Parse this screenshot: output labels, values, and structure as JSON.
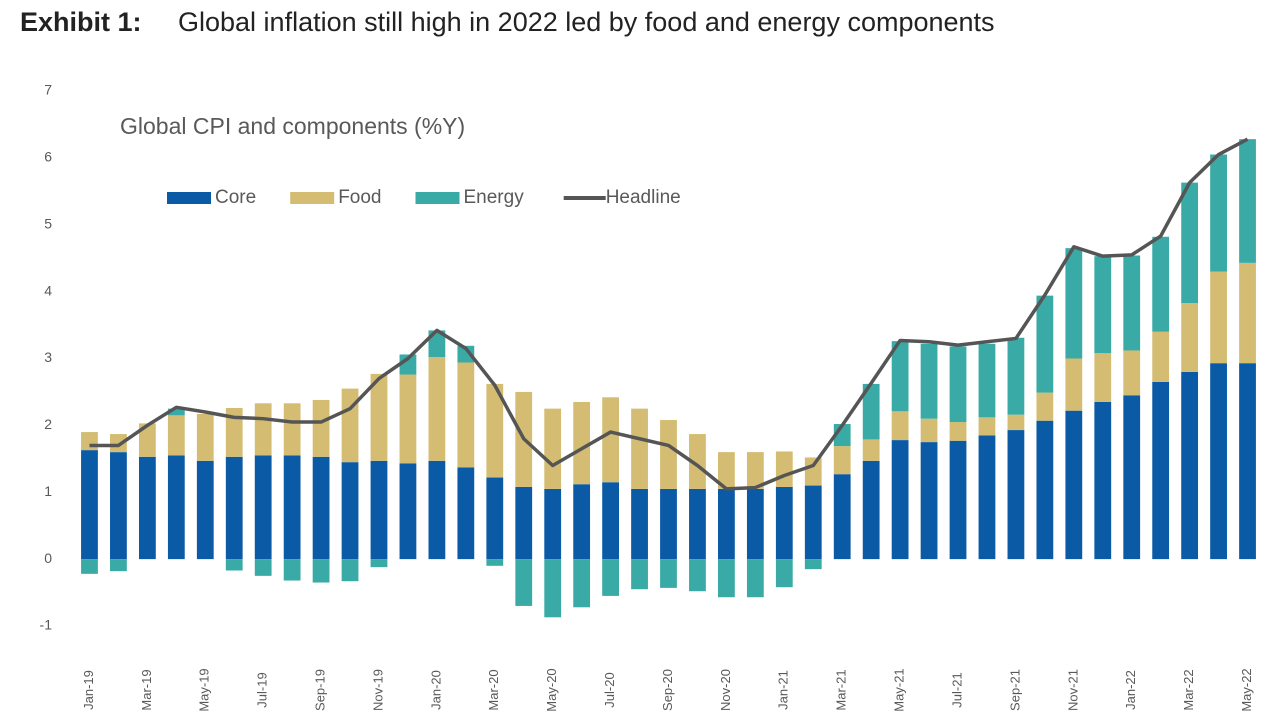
{
  "chart_data": {
    "type": "stacked-bar-line",
    "exhibit": "Exhibit 1:",
    "title": "Global inflation still high in 2022 led by food and energy components",
    "subtitle": "Global CPI and components (%Y)",
    "categories": [
      "Jan-19",
      null,
      "Mar-19",
      null,
      "May-19",
      null,
      "Jul-19",
      null,
      "Sep-19",
      null,
      "Nov-19",
      null,
      "Jan-20",
      null,
      "Mar-20",
      null,
      "May-20",
      null,
      "Jul-20",
      null,
      "Sep-20",
      null,
      "Nov-20",
      null,
      "Jan-21",
      null,
      "Mar-21",
      null,
      "May-21",
      null,
      "Jul-21",
      null,
      "Sep-21",
      null,
      "Nov-21",
      null,
      "Jan-22",
      null,
      "Mar-22",
      null,
      "May-22"
    ],
    "series": [
      {
        "name": "Core",
        "color": "#0a5aa6",
        "kind": "bar",
        "values": [
          1.63,
          1.6,
          1.53,
          1.55,
          1.47,
          1.53,
          1.55,
          1.55,
          1.53,
          1.45,
          1.47,
          1.43,
          1.47,
          1.37,
          1.22,
          1.08,
          1.05,
          1.12,
          1.15,
          1.05,
          1.05,
          1.05,
          1.05,
          1.05,
          1.08,
          1.1,
          1.27,
          1.47,
          1.78,
          1.75,
          1.77,
          1.85,
          1.93,
          2.07,
          2.22,
          2.35,
          2.45,
          2.65,
          2.8,
          2.93,
          2.93
        ]
      },
      {
        "name": "Food",
        "color": "#d4bd72",
        "kind": "bar",
        "values": [
          0.27,
          0.27,
          0.5,
          0.6,
          0.7,
          0.73,
          0.78,
          0.78,
          0.85,
          1.1,
          1.3,
          1.33,
          1.55,
          1.57,
          1.4,
          1.42,
          1.2,
          1.23,
          1.27,
          1.2,
          1.03,
          0.82,
          0.55,
          0.55,
          0.53,
          0.42,
          0.42,
          0.32,
          0.43,
          0.35,
          0.28,
          0.27,
          0.23,
          0.42,
          0.78,
          0.73,
          0.67,
          0.75,
          1.03,
          1.37,
          1.5
        ]
      },
      {
        "name": "Energy",
        "color": "#3aaaa6",
        "kind": "bar",
        "values": [
          -0.22,
          -0.18,
          0,
          0.1,
          0,
          -0.17,
          -0.25,
          -0.32,
          -0.35,
          -0.33,
          -0.12,
          0.3,
          0.4,
          0.25,
          -0.1,
          -0.7,
          -0.87,
          -0.72,
          -0.55,
          -0.45,
          -0.43,
          -0.48,
          -0.57,
          -0.57,
          -0.42,
          -0.15,
          0.33,
          0.83,
          1.05,
          1.12,
          1.13,
          1.1,
          1.15,
          1.45,
          1.65,
          1.45,
          1.42,
          1.42,
          1.8,
          1.75,
          1.85
        ]
      },
      {
        "name": "Headline",
        "color": "#555555",
        "kind": "line",
        "values": [
          1.7,
          1.7,
          2.0,
          2.27,
          2.2,
          2.12,
          2.1,
          2.05,
          2.05,
          2.25,
          2.7,
          3.0,
          3.42,
          3.15,
          2.6,
          1.8,
          1.4,
          1.65,
          1.9,
          1.8,
          1.7,
          1.4,
          1.05,
          1.07,
          1.25,
          1.4,
          2.0,
          2.63,
          3.27,
          3.25,
          3.2,
          3.25,
          3.3,
          3.95,
          4.67,
          4.53,
          4.55,
          4.83,
          5.63,
          6.05,
          6.28
        ]
      }
    ],
    "ylim": [
      -1,
      7
    ],
    "yticks": [
      -1,
      0,
      1,
      2,
      3,
      4,
      5,
      6,
      7
    ],
    "grid": false
  }
}
